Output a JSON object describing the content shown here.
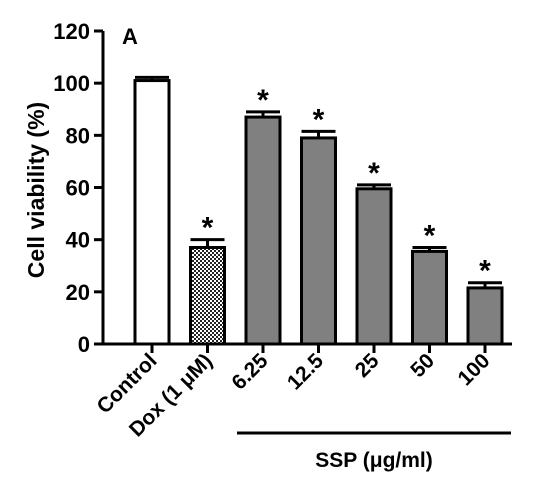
{
  "chart_data": {
    "type": "bar",
    "panel_label": "A",
    "ylabel": "Cell viability (%)",
    "xlabel": "",
    "ylim": [
      0,
      120
    ],
    "yticks": [
      0,
      20,
      40,
      60,
      80,
      100,
      120
    ],
    "categories": [
      "Control",
      "Dox (1 μM)",
      "6.25",
      "12.5",
      "25",
      "50",
      "100"
    ],
    "values": [
      101,
      37,
      87,
      79,
      59.5,
      35.5,
      21.5
    ],
    "errors": [
      1.2,
      3,
      2,
      2.5,
      1.5,
      1.5,
      2
    ],
    "significance": [
      "",
      "*",
      "*",
      "*",
      "*",
      "*",
      "*"
    ],
    "bar_fills": [
      "white",
      "checkered",
      "gray",
      "gray",
      "gray",
      "gray",
      "gray"
    ],
    "colors": {
      "gray": "#808080",
      "outline": "#000000",
      "white": "#ffffff"
    },
    "group": {
      "label": "SSP (μg/ml)",
      "from_index": 2,
      "to_index": 6
    }
  }
}
